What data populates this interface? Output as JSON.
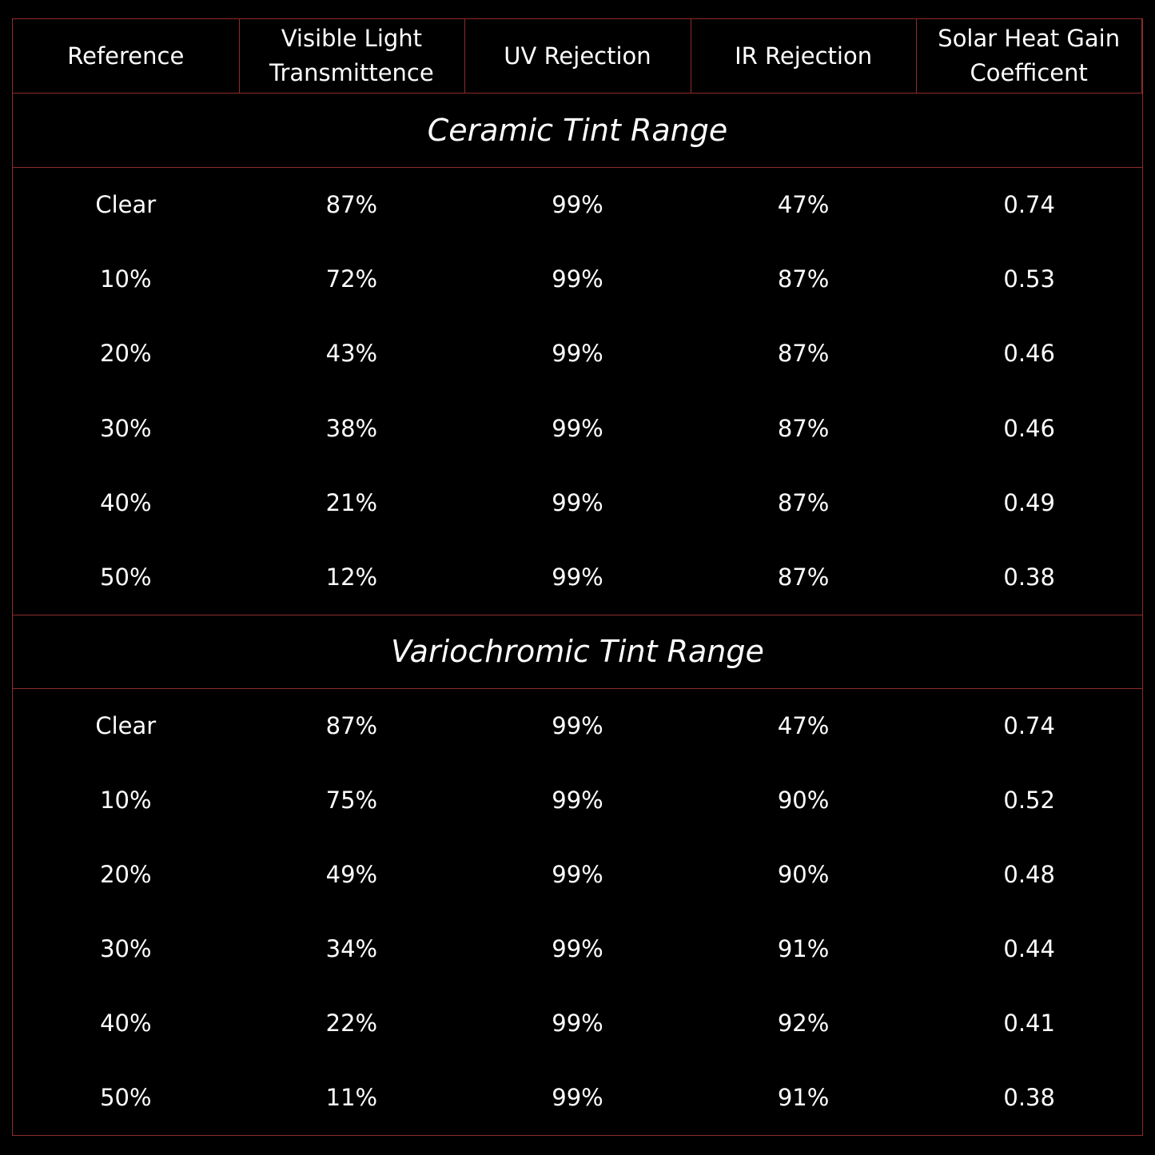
{
  "table": {
    "header": [
      "Reference",
      "Visible Light Transmittence",
      "UV Rejection",
      "IR Rejection",
      "Solar Heat Gain Coefficent"
    ],
    "sections": [
      {
        "title": "Ceramic Tint Range",
        "rows": [
          [
            "Clear",
            "87%",
            "99%",
            "47%",
            "0.74"
          ],
          [
            "10%",
            "72%",
            "99%",
            "87%",
            "0.53"
          ],
          [
            "20%",
            "43%",
            "99%",
            "87%",
            "0.46"
          ],
          [
            "30%",
            "38%",
            "99%",
            "87%",
            "0.46"
          ],
          [
            "40%",
            "21%",
            "99%",
            "87%",
            "0.49"
          ],
          [
            "50%",
            "12%",
            "99%",
            "87%",
            "0.38"
          ]
        ]
      },
      {
        "title": "Variochromic Tint Range",
        "rows": [
          [
            "Clear",
            "87%",
            "99%",
            "47%",
            "0.74"
          ],
          [
            "10%",
            "75%",
            "99%",
            "90%",
            "0.52"
          ],
          [
            "20%",
            "49%",
            "99%",
            "90%",
            "0.48"
          ],
          [
            "30%",
            "34%",
            "99%",
            "91%",
            "0.44"
          ],
          [
            "40%",
            "22%",
            "99%",
            "92%",
            "0.41"
          ],
          [
            "50%",
            "11%",
            "99%",
            "91%",
            "0.38"
          ]
        ]
      }
    ]
  }
}
